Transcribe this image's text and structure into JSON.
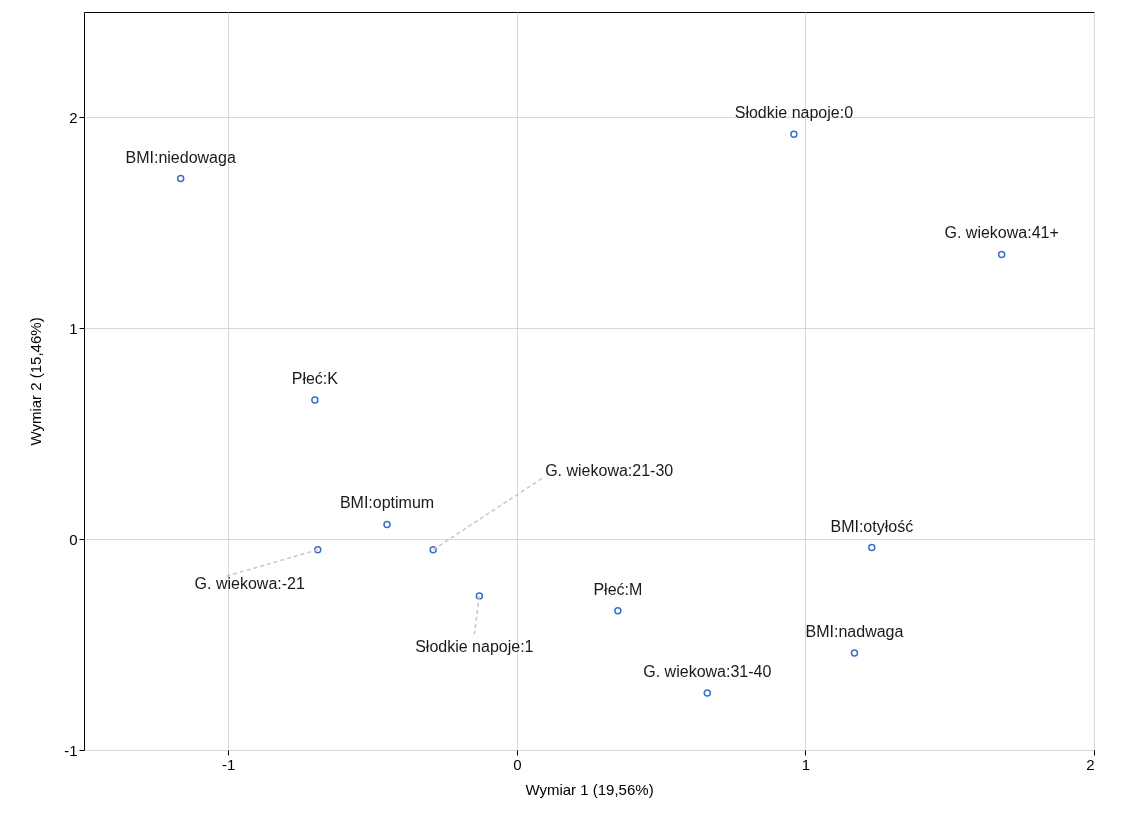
{
  "chart_data": {
    "type": "scatter",
    "xlabel": "Wymiar 1 (19,56%)",
    "ylabel": "Wymiar 2 (15,46%)",
    "x": [
      -1.165,
      0.96,
      1.68,
      -0.7,
      -0.45,
      -0.69,
      -0.29,
      -0.13,
      0.35,
      1.23,
      1.17,
      0.66
    ],
    "series": [
      {
        "color": "#3a6fc8",
        "values": [
          1.71,
          1.92,
          1.35,
          0.66,
          0.07,
          -0.05,
          -0.05,
          -0.27,
          -0.34,
          -0.04,
          -0.54,
          -0.73
        ]
      }
    ],
    "marker": "circle",
    "grid": true,
    "xlim": [
      -1.5,
      2
    ],
    "ylim": [
      -1,
      2.5
    ],
    "xticks": [
      -1,
      0,
      1,
      2
    ],
    "yticks": [
      -1,
      0,
      1,
      2
    ],
    "annotations": [
      {
        "text": "BMI:niedowaga",
        "x": -1.165,
        "y": 1.71
      },
      {
        "text": "Słodkie napoje:0",
        "x": 0.96,
        "y": 1.92
      },
      {
        "text": "G. wiekowa:41+",
        "x": 1.68,
        "y": 1.35
      },
      {
        "text": "Płeć:K",
        "x": -0.7,
        "y": 0.66
      },
      {
        "text": "BMI:optimum",
        "x": -0.45,
        "y": 0.07
      },
      {
        "text": "G. wiekowa:-21",
        "x": -0.69,
        "y": -0.05
      },
      {
        "text": "G. wiekowa:21-30",
        "x": -0.29,
        "y": -0.05
      },
      {
        "text": "Słodkie napoje:1",
        "x": -0.13,
        "y": -0.27
      },
      {
        "text": "Płeć:M",
        "x": 0.35,
        "y": -0.34
      },
      {
        "text": "BMI:otyłość",
        "x": 1.23,
        "y": -0.04
      },
      {
        "text": "BMI:nadwaga",
        "x": 1.17,
        "y": -0.54
      },
      {
        "text": "G. wiekowa:31-40",
        "x": 0.66,
        "y": -0.73
      }
    ]
  }
}
